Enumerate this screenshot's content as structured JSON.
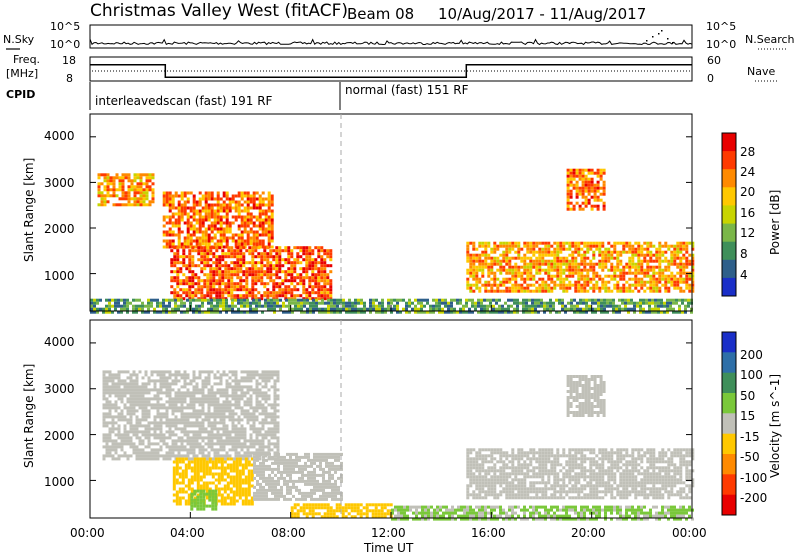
{
  "header": {
    "title": "Christmas Valley West (fitACF)",
    "beam": "Beam 08",
    "date_range": "10/Aug/2017 - 11/Aug/2017"
  },
  "noise_panel": {
    "label_left": "N.Sky",
    "label_right": "N.Search",
    "tick_top_left": "10^5",
    "tick_bottom_left": "10^0",
    "tick_top_right": "10^5",
    "tick_bottom_right": "10^0"
  },
  "freq_panel": {
    "label_line1": "Freq.",
    "label_line2": "[MHz]",
    "right_label": "Nave",
    "tick_18": "18",
    "tick_8": "8",
    "tick_60": "60",
    "tick_0": "0"
  },
  "cpid_panel": {
    "label": "CPID",
    "mode_1": "interleavedscan (fast) 191 RF",
    "mode_2": "normal (fast) 151 RF"
  },
  "power_panel": {
    "ylabel": "Slant Range [km]",
    "yticks": [
      "4000",
      "3000",
      "2000",
      "1000"
    ],
    "colorbar_label": "Power [dB]",
    "colorbar_ticks": [
      "28",
      "24",
      "20",
      "16",
      "12",
      "8",
      "4"
    ],
    "colorbar_colors": [
      "#e80000",
      "#ff3a00",
      "#ff8a00",
      "#ffc800",
      "#c8d400",
      "#7ab648",
      "#3f8f5a",
      "#2e5f8a",
      "#1a2fc8"
    ]
  },
  "velocity_panel": {
    "ylabel": "Slant Range [km]",
    "yticks": [
      "4000",
      "3000",
      "2000",
      "1000"
    ],
    "colorbar_label": "Velocity [m s^-1]",
    "colorbar_ticks": [
      "200",
      "100",
      "50",
      "15",
      "-15",
      "-50",
      "-100",
      "-200"
    ],
    "colorbar_colors": [
      "#1a2fc8",
      "#2e6fa8",
      "#3f8f5a",
      "#7ac83a",
      "#c0c0b8",
      "#ffc800",
      "#ff8a00",
      "#ff3a00",
      "#e80000"
    ]
  },
  "xaxis": {
    "label": "Time UT",
    "ticks": [
      "00:00",
      "04:00",
      "08:00",
      "12:00",
      "16:00",
      "20:00",
      "00:00"
    ]
  },
  "chart_data": {
    "type": "heatmap",
    "title": "Christmas Valley West (fitACF)",
    "subtitle": "Beam 08 10/Aug/2017 - 11/Aug/2017",
    "xlabel": "Time UT",
    "xlim_hours": [
      0,
      24
    ],
    "ylabel": "Slant Range [km]",
    "ylim_km": [
      180,
      4500
    ],
    "frequency_mhz": {
      "ylim": [
        8,
        18
      ],
      "segments": [
        {
          "t": [
            0,
            3
          ],
          "value": 14.8
        },
        {
          "t": [
            3,
            15
          ],
          "value": 9.6
        },
        {
          "t": [
            15,
            24
          ],
          "value": 14.8
        }
      ]
    },
    "cpid_modes": [
      {
        "t_start": 0,
        "t_end": 10,
        "label": "interleavedscan (fast) 191 RF"
      },
      {
        "t_start": 10,
        "t_end": 24,
        "label": "normal (fast) 151 RF"
      }
    ],
    "power_regions": [
      {
        "t": [
          0.3,
          2.5
        ],
        "range_km": [
          2500,
          3200
        ],
        "power_db": 22
      },
      {
        "t": [
          2.9,
          7.3
        ],
        "range_km": [
          1600,
          2800
        ],
        "power_db": 24
      },
      {
        "t": [
          3.2,
          9.6
        ],
        "range_km": [
          450,
          1600
        ],
        "power_db": 26
      },
      {
        "t": [
          0,
          24
        ],
        "range_km": [
          180,
          450
        ],
        "power_db": 10
      },
      {
        "t": [
          15,
          24
        ],
        "range_km": [
          600,
          1700
        ],
        "power_db": 22
      },
      {
        "t": [
          19,
          20.5
        ],
        "range_km": [
          2400,
          3300
        ],
        "power_db": 24
      }
    ],
    "velocity_regions": [
      {
        "t": [
          0.5,
          7.5
        ],
        "range_km": [
          1500,
          3400
        ],
        "velocity": 0
      },
      {
        "t": [
          3.3,
          6.5
        ],
        "range_km": [
          500,
          1500
        ],
        "velocity": -60
      },
      {
        "t": [
          4,
          5
        ],
        "range_km": [
          400,
          800
        ],
        "velocity": 40
      },
      {
        "t": [
          6.5,
          10
        ],
        "range_km": [
          600,
          1600
        ],
        "velocity": 0
      },
      {
        "t": [
          8,
          12
        ],
        "range_km": [
          180,
          500
        ],
        "velocity": -60
      },
      {
        "t": [
          12,
          24
        ],
        "range_km": [
          180,
          450
        ],
        "velocity": 30
      },
      {
        "t": [
          15,
          24
        ],
        "range_km": [
          600,
          1700
        ],
        "velocity": 0
      },
      {
        "t": [
          19,
          20.5
        ],
        "range_km": [
          2400,
          3300
        ],
        "velocity": 0
      }
    ]
  }
}
